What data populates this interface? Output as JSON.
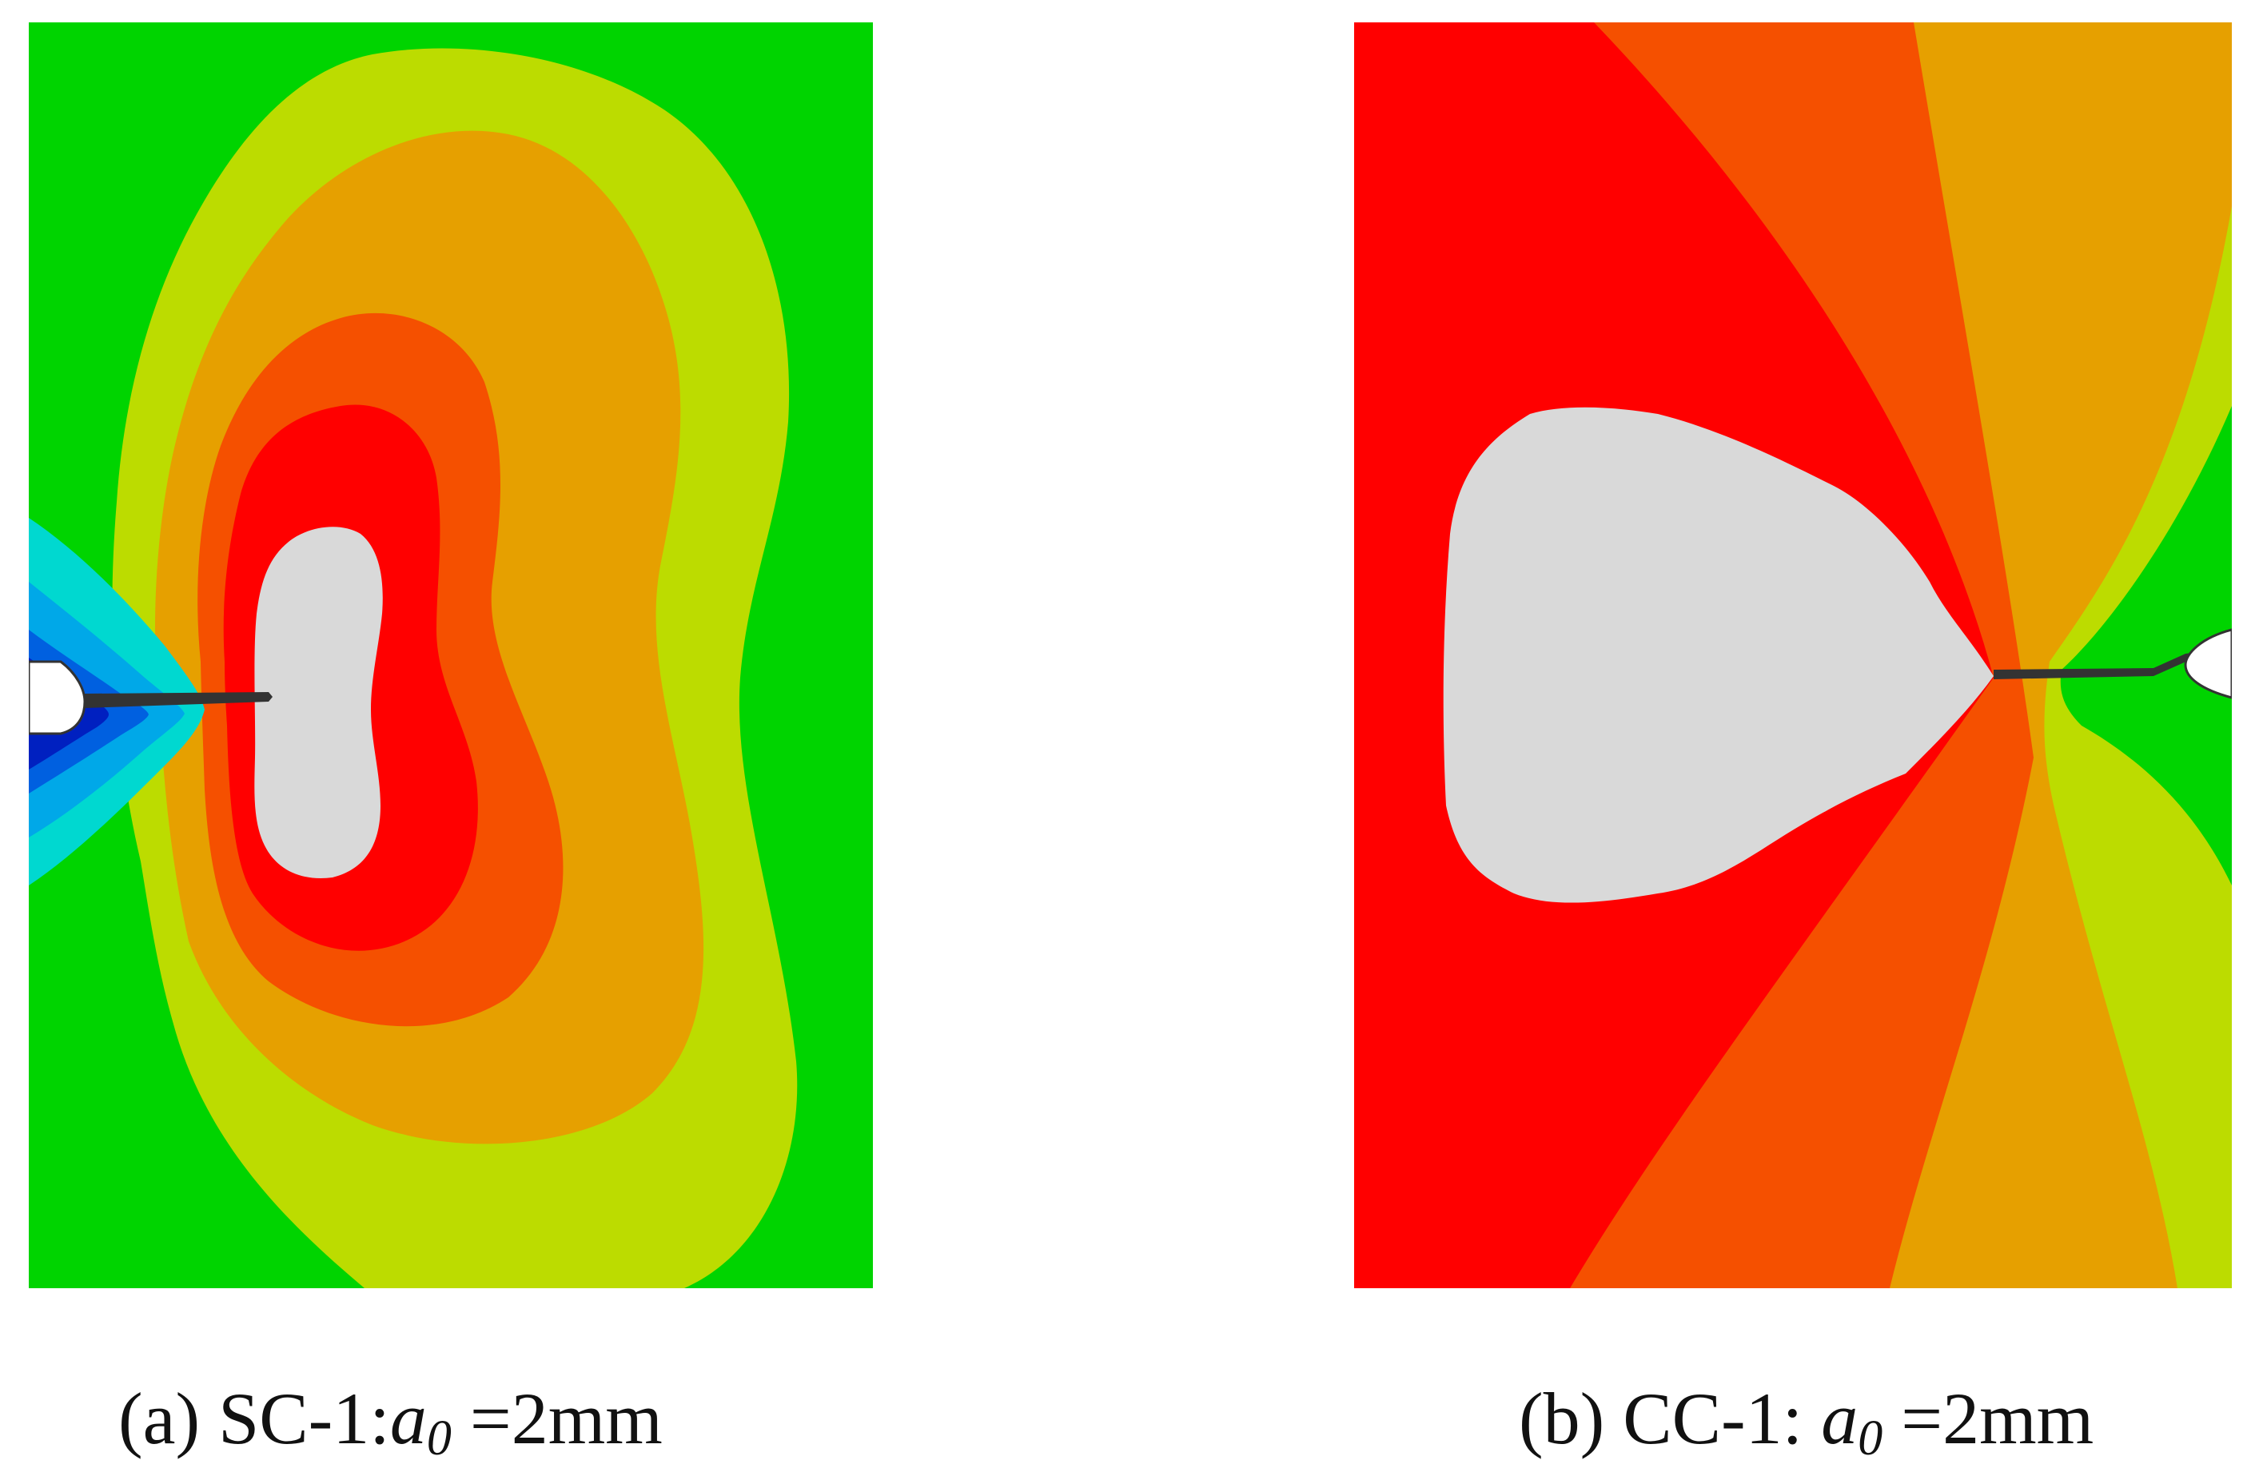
{
  "figure": {
    "colors": {
      "green": "#00d400",
      "yellow_green": "#bcdc00",
      "orange": "#e6a000",
      "red_orange": "#f55000",
      "red": "#ff0000",
      "gray": "#d9d9d9",
      "cyan": "#00d8d0",
      "light_blue": "#00a8e8",
      "blue": "#0060e0",
      "dark_blue": "#0020c0"
    },
    "panels": [
      {
        "caption_prefix": "(a) SC-1:",
        "caption_symbol": "a",
        "caption_subscript": "0",
        "caption_suffix": " =2mm"
      },
      {
        "caption_prefix": "(b) CC-1: ",
        "caption_symbol": "a",
        "caption_subscript": "0",
        "caption_suffix": " =2mm"
      }
    ]
  }
}
